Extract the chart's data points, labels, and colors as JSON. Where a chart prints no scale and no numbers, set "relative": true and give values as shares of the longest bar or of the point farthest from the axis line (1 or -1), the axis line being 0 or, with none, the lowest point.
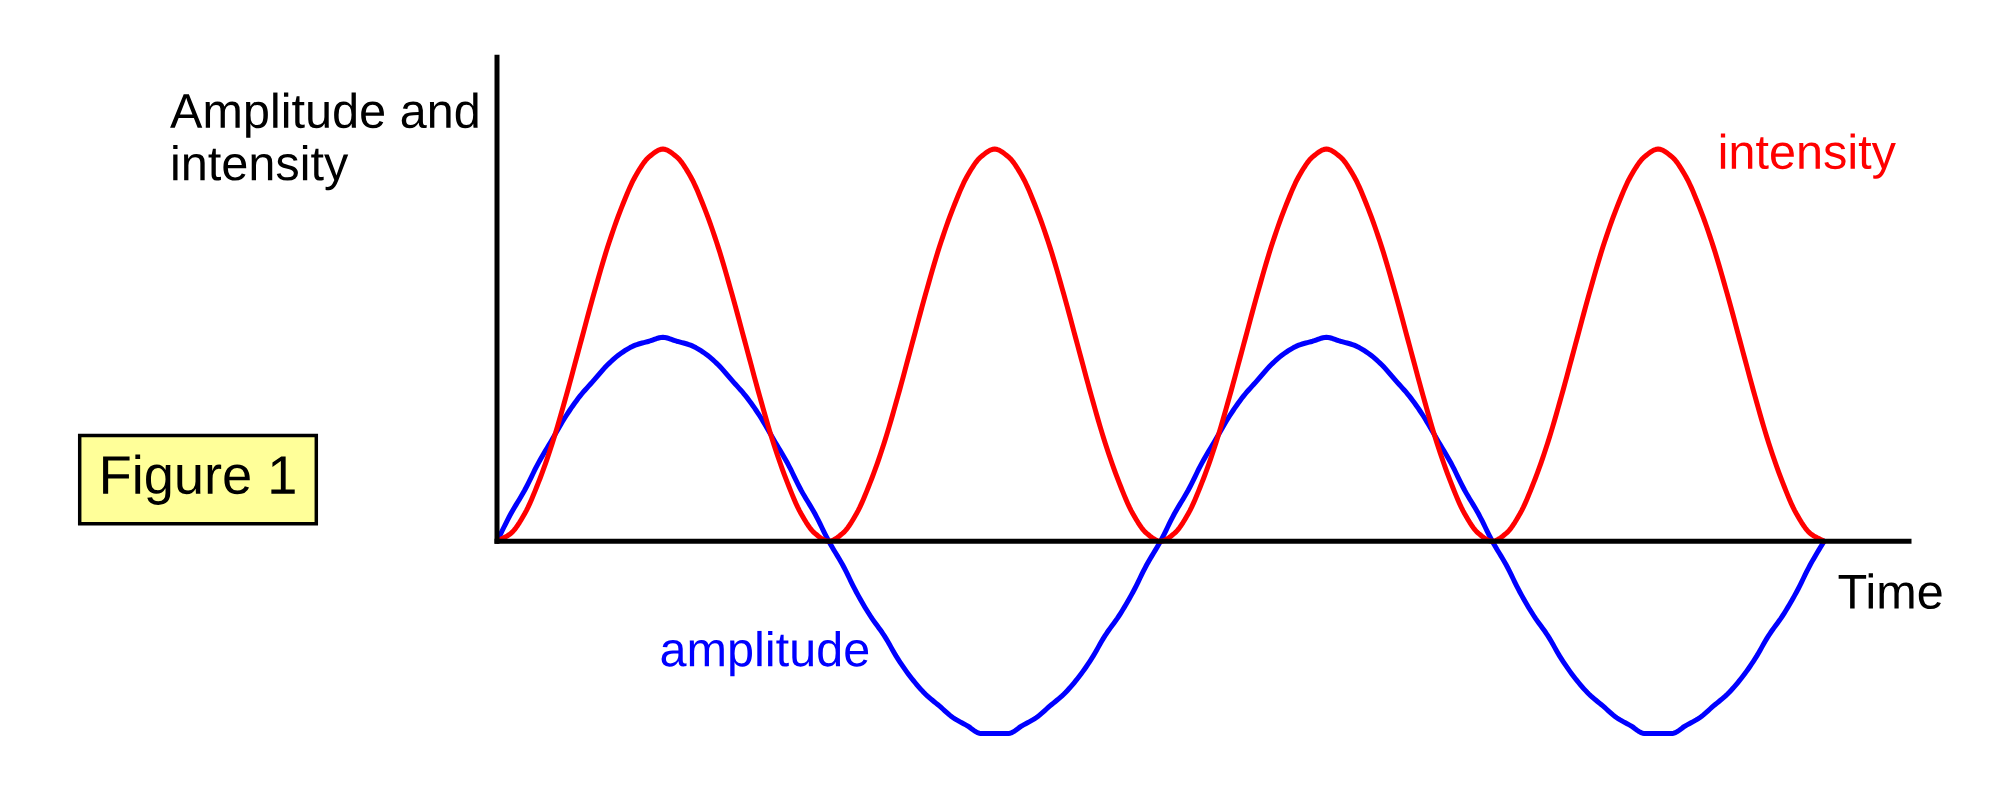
{
  "chart_data": {
    "type": "line",
    "relative": true,
    "xlabel": "Time",
    "ylabel": "Amplitude and\nintensity",
    "annotations": [
      "Figure 1"
    ],
    "categories": [
      null,
      null,
      null,
      null,
      null,
      null,
      null,
      null,
      null,
      null,
      null,
      null,
      null,
      null,
      null,
      null,
      null,
      null,
      null,
      null,
      null,
      null,
      null,
      null,
      null,
      null,
      null,
      null,
      null,
      null,
      null,
      null,
      null,
      null,
      null,
      null,
      null,
      null,
      null,
      null,
      null,
      null,
      null,
      null,
      null,
      null,
      null,
      null,
      null,
      null,
      null,
      null,
      null,
      null,
      null,
      null,
      null,
      null,
      null,
      null,
      null,
      null,
      null,
      null,
      null,
      null,
      null,
      null,
      null,
      null,
      null,
      null,
      null,
      null,
      null,
      null,
      null,
      null,
      null,
      null,
      null,
      null,
      null,
      null,
      null,
      null,
      null,
      null,
      null,
      null,
      null,
      null,
      null,
      null,
      null,
      null,
      null
    ],
    "series": [
      {
        "name": "amplitude",
        "color": "#0000ff",
        "values": [
          0,
          0.07,
          0.13,
          0.2,
          0.26,
          0.32,
          0.37,
          0.41,
          0.45,
          0.48,
          0.5,
          0.51,
          0.52,
          0.51,
          0.5,
          0.48,
          0.45,
          0.41,
          0.37,
          0.32,
          0.26,
          0.2,
          0.13,
          0.07,
          0,
          -0.06,
          -0.13,
          -0.19,
          -0.24,
          -0.3,
          -0.35,
          -0.39,
          -0.42,
          -0.45,
          -0.47,
          -0.49,
          -0.49,
          -0.49,
          -0.47,
          -0.45,
          -0.42,
          -0.39,
          -0.35,
          -0.3,
          -0.24,
          -0.19,
          -0.13,
          -0.06,
          0,
          0.07,
          0.13,
          0.2,
          0.26,
          0.32,
          0.37,
          0.41,
          0.45,
          0.48,
          0.5,
          0.51,
          0.52,
          0.51,
          0.5,
          0.48,
          0.45,
          0.41,
          0.37,
          0.32,
          0.26,
          0.2,
          0.13,
          0.07,
          0,
          -0.06,
          -0.13,
          -0.19,
          -0.24,
          -0.3,
          -0.35,
          -0.39,
          -0.42,
          -0.45,
          -0.47,
          -0.49,
          -0.49,
          -0.49,
          -0.47,
          -0.45,
          -0.42,
          -0.39,
          -0.35,
          -0.3,
          -0.24,
          -0.19,
          -0.13,
          -0.06,
          0
        ]
      },
      {
        "name": "intensity",
        "color": "#ff0000",
        "values": [
          0,
          0.02,
          0.07,
          0.15,
          0.25,
          0.37,
          0.5,
          0.63,
          0.75,
          0.85,
          0.93,
          0.98,
          1,
          0.98,
          0.93,
          0.85,
          0.75,
          0.63,
          0.5,
          0.37,
          0.25,
          0.15,
          0.07,
          0.02,
          0,
          0.02,
          0.07,
          0.15,
          0.25,
          0.37,
          0.5,
          0.63,
          0.75,
          0.85,
          0.93,
          0.98,
          1,
          0.98,
          0.93,
          0.85,
          0.75,
          0.63,
          0.5,
          0.37,
          0.25,
          0.15,
          0.07,
          0.02,
          0,
          0.02,
          0.07,
          0.15,
          0.25,
          0.37,
          0.5,
          0.63,
          0.75,
          0.85,
          0.93,
          0.98,
          1,
          0.98,
          0.93,
          0.85,
          0.75,
          0.63,
          0.5,
          0.37,
          0.25,
          0.15,
          0.07,
          0.02,
          0,
          0.02,
          0.07,
          0.15,
          0.25,
          0.37,
          0.5,
          0.63,
          0.75,
          0.85,
          0.93,
          0.98,
          1,
          0.98,
          0.93,
          0.85,
          0.75,
          0.63,
          0.5,
          0.37,
          0.25,
          0.15,
          0.07,
          0.02,
          0
        ]
      }
    ]
  }
}
